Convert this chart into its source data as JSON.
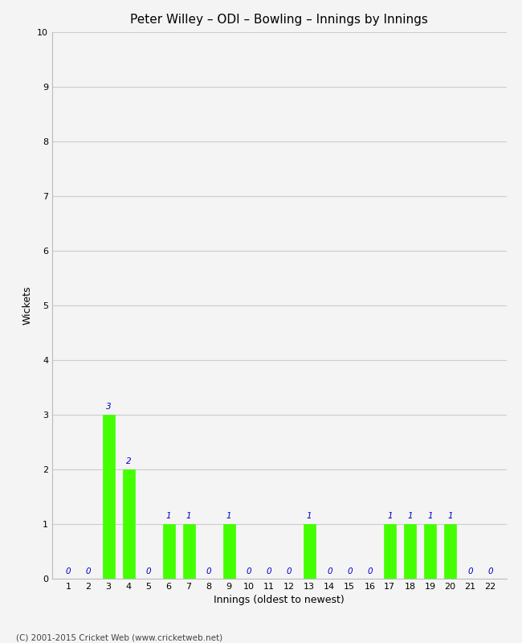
{
  "title": "Peter Willey – ODI – Bowling – Innings by Innings",
  "xlabel": "Innings (oldest to newest)",
  "ylabel": "Wickets",
  "innings": [
    1,
    2,
    3,
    4,
    5,
    6,
    7,
    8,
    9,
    10,
    11,
    12,
    13,
    14,
    15,
    16,
    17,
    18,
    19,
    20,
    21,
    22
  ],
  "wickets": [
    0,
    0,
    3,
    2,
    0,
    1,
    1,
    0,
    1,
    0,
    0,
    0,
    1,
    0,
    0,
    0,
    1,
    1,
    1,
    1,
    0,
    0
  ],
  "bar_color": "#44ff00",
  "bar_edge_color": "#44ff00",
  "label_color": "#0000cc",
  "ylim": [
    0,
    10
  ],
  "yticks": [
    0,
    1,
    2,
    3,
    4,
    5,
    6,
    7,
    8,
    9,
    10
  ],
  "background_color": "#f4f4f4",
  "grid_color": "#cccccc",
  "title_fontsize": 11,
  "axis_label_fontsize": 9,
  "tick_fontsize": 8,
  "value_label_fontsize": 7.5,
  "footer": "(C) 2001-2015 Cricket Web (www.cricketweb.net)"
}
